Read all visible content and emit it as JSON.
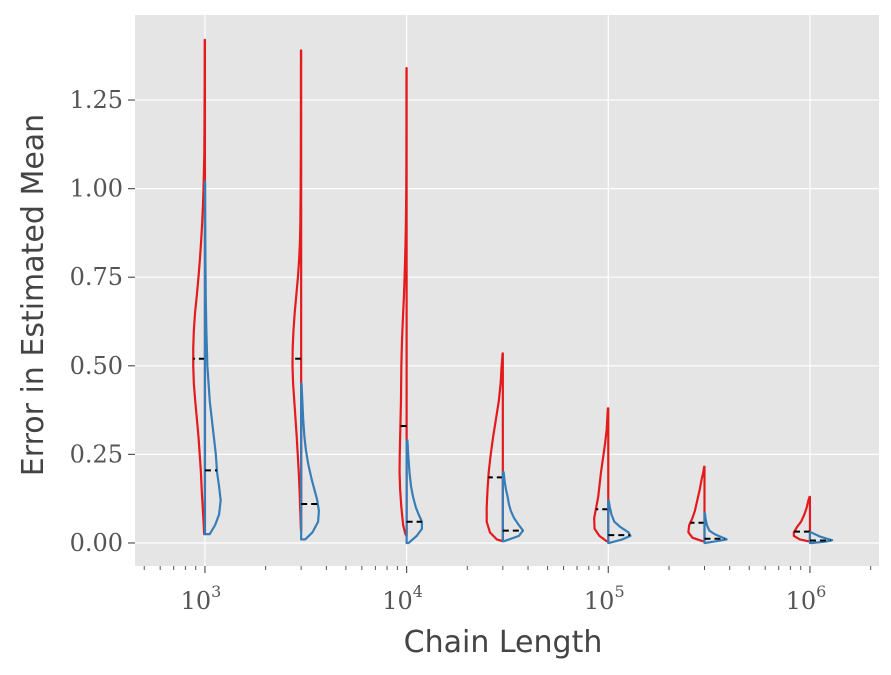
{
  "chart_data": {
    "type": "violin",
    "xlabel": "Chain Length",
    "ylabel": "Error in Estimated Mean",
    "x_scale": "log",
    "xlim": [
      450,
      2200000
    ],
    "ylim": [
      -0.065,
      1.49
    ],
    "grid": true,
    "x_ticks": [
      {
        "base": "10",
        "exp": "3",
        "value": 1000
      },
      {
        "base": "10",
        "exp": "4",
        "value": 10000
      },
      {
        "base": "10",
        "exp": "5",
        "value": 100000
      },
      {
        "base": "10",
        "exp": "6",
        "value": 1000000
      }
    ],
    "y_ticks": [
      {
        "label": "0.00",
        "value": 0.0
      },
      {
        "label": "0.25",
        "value": 0.25
      },
      {
        "label": "0.50",
        "value": 0.5
      },
      {
        "label": "0.75",
        "value": 0.75
      },
      {
        "label": "1.00",
        "value": 1.0
      },
      {
        "label": "1.25",
        "value": 1.25
      }
    ],
    "colors": {
      "left": "#e41a1c",
      "right": "#377eb8",
      "median": "#000000",
      "background": "#e5e5e5",
      "grid": "#ffffff"
    },
    "groups": [
      {
        "x": 1000,
        "left": {
          "median": 0.52,
          "profile": [
            [
              0.025,
              0.02
            ],
            [
              0.05,
              0.03
            ],
            [
              0.1,
              0.055
            ],
            [
              0.15,
              0.08
            ],
            [
              0.2,
              0.1
            ],
            [
              0.25,
              0.13
            ],
            [
              0.3,
              0.16
            ],
            [
              0.35,
              0.2
            ],
            [
              0.4,
              0.24
            ],
            [
              0.45,
              0.275
            ],
            [
              0.5,
              0.29
            ],
            [
              0.55,
              0.29
            ],
            [
              0.6,
              0.275
            ],
            [
              0.65,
              0.245
            ],
            [
              0.7,
              0.2
            ],
            [
              0.75,
              0.16
            ],
            [
              0.8,
              0.125
            ],
            [
              0.85,
              0.095
            ],
            [
              0.9,
              0.07
            ],
            [
              0.95,
              0.05
            ],
            [
              1.0,
              0.035
            ],
            [
              1.05,
              0.025
            ],
            [
              1.1,
              0.015
            ],
            [
              1.2,
              0.01
            ],
            [
              1.3,
              0.007
            ],
            [
              1.42,
              0.005
            ]
          ]
        },
        "right": {
          "median": 0.205,
          "profile": [
            [
              0.025,
              0.12
            ],
            [
              0.05,
              0.25
            ],
            [
              0.08,
              0.35
            ],
            [
              0.12,
              0.39
            ],
            [
              0.16,
              0.35
            ],
            [
              0.2,
              0.3
            ],
            [
              0.25,
              0.27
            ],
            [
              0.3,
              0.22
            ],
            [
              0.35,
              0.17
            ],
            [
              0.4,
              0.12
            ],
            [
              0.5,
              0.06
            ],
            [
              0.6,
              0.035
            ],
            [
              0.7,
              0.02
            ],
            [
              0.8,
              0.012
            ],
            [
              0.9,
              0.008
            ],
            [
              1.02,
              0.004
            ]
          ]
        }
      },
      {
        "x": 3000,
        "left": {
          "median": 0.52,
          "profile": [
            [
              0.035,
              0.005
            ],
            [
              0.05,
              0.01
            ],
            [
              0.1,
              0.025
            ],
            [
              0.15,
              0.04
            ],
            [
              0.2,
              0.06
            ],
            [
              0.25,
              0.085
            ],
            [
              0.3,
              0.11
            ],
            [
              0.35,
              0.14
            ],
            [
              0.4,
              0.17
            ],
            [
              0.45,
              0.2
            ],
            [
              0.5,
              0.215
            ],
            [
              0.55,
              0.21
            ],
            [
              0.6,
              0.19
            ],
            [
              0.65,
              0.16
            ],
            [
              0.7,
              0.12
            ],
            [
              0.75,
              0.08
            ],
            [
              0.8,
              0.05
            ],
            [
              0.85,
              0.03
            ],
            [
              0.9,
              0.02
            ],
            [
              1.0,
              0.012
            ],
            [
              1.1,
              0.008
            ],
            [
              1.2,
              0.006
            ],
            [
              1.3,
              0.006
            ],
            [
              1.39,
              0.005
            ]
          ]
        },
        "right": {
          "median": 0.11,
          "profile": [
            [
              0.01,
              0.1
            ],
            [
              0.03,
              0.28
            ],
            [
              0.06,
              0.42
            ],
            [
              0.09,
              0.44
            ],
            [
              0.12,
              0.4
            ],
            [
              0.15,
              0.33
            ],
            [
              0.18,
              0.26
            ],
            [
              0.22,
              0.18
            ],
            [
              0.26,
              0.12
            ],
            [
              0.3,
              0.08
            ],
            [
              0.35,
              0.05
            ],
            [
              0.4,
              0.03
            ],
            [
              0.45,
              0.01
            ]
          ]
        }
      },
      {
        "x": 10000,
        "left": {
          "median": 0.33,
          "profile": [
            [
              0.02,
              0.005
            ],
            [
              0.025,
              0.03
            ],
            [
              0.05,
              0.085
            ],
            [
              0.1,
              0.13
            ],
            [
              0.15,
              0.16
            ],
            [
              0.2,
              0.175
            ],
            [
              0.25,
              0.17
            ],
            [
              0.3,
              0.16
            ],
            [
              0.35,
              0.15
            ],
            [
              0.4,
              0.14
            ],
            [
              0.45,
              0.135
            ],
            [
              0.5,
              0.13
            ],
            [
              0.55,
              0.12
            ],
            [
              0.6,
              0.105
            ],
            [
              0.65,
              0.085
            ],
            [
              0.7,
              0.065
            ],
            [
              0.75,
              0.05
            ],
            [
              0.8,
              0.037
            ],
            [
              0.85,
              0.026
            ],
            [
              0.9,
              0.018
            ],
            [
              0.95,
              0.012
            ],
            [
              1.0,
              0.008
            ],
            [
              1.1,
              0.005
            ],
            [
              1.2,
              0.004
            ],
            [
              1.34,
              0.003
            ]
          ]
        },
        "right": {
          "median": 0.06,
          "profile": [
            [
              0.0,
              0.05
            ],
            [
              0.02,
              0.25
            ],
            [
              0.04,
              0.38
            ],
            [
              0.06,
              0.38
            ],
            [
              0.08,
              0.3
            ],
            [
              0.1,
              0.23
            ],
            [
              0.13,
              0.16
            ],
            [
              0.16,
              0.11
            ],
            [
              0.2,
              0.07
            ],
            [
              0.25,
              0.04
            ],
            [
              0.29,
              0.02
            ]
          ]
        }
      },
      {
        "x": 30000,
        "left": {
          "median": 0.185,
          "profile": [
            [
              0.005,
              0.005
            ],
            [
              0.01,
              0.15
            ],
            [
              0.03,
              0.32
            ],
            [
              0.06,
              0.4
            ],
            [
              0.1,
              0.4
            ],
            [
              0.15,
              0.38
            ],
            [
              0.2,
              0.35
            ],
            [
              0.25,
              0.3
            ],
            [
              0.3,
              0.24
            ],
            [
              0.35,
              0.17
            ],
            [
              0.4,
              0.1
            ],
            [
              0.45,
              0.055
            ],
            [
              0.5,
              0.03
            ],
            [
              0.535,
              0.005
            ]
          ]
        },
        "right": {
          "median": 0.035,
          "profile": [
            [
              0.005,
              0.03
            ],
            [
              0.02,
              0.4
            ],
            [
              0.035,
              0.5
            ],
            [
              0.05,
              0.4
            ],
            [
              0.07,
              0.28
            ],
            [
              0.09,
              0.2
            ],
            [
              0.11,
              0.15
            ],
            [
              0.13,
              0.12
            ],
            [
              0.15,
              0.08
            ],
            [
              0.17,
              0.05
            ],
            [
              0.2,
              0.02
            ]
          ]
        }
      },
      {
        "x": 100000,
        "left": {
          "median": 0.095,
          "profile": [
            [
              0.005,
              0.04
            ],
            [
              0.02,
              0.22
            ],
            [
              0.04,
              0.34
            ],
            [
              0.07,
              0.35
            ],
            [
              0.1,
              0.3
            ],
            [
              0.13,
              0.25
            ],
            [
              0.16,
              0.22
            ],
            [
              0.2,
              0.18
            ],
            [
              0.24,
              0.13
            ],
            [
              0.28,
              0.08
            ],
            [
              0.32,
              0.04
            ],
            [
              0.36,
              0.02
            ],
            [
              0.38,
              0.01
            ]
          ]
        },
        "right": {
          "median": 0.022,
          "profile": [
            [
              0.0,
              0.02
            ],
            [
              0.01,
              0.35
            ],
            [
              0.02,
              0.55
            ],
            [
              0.03,
              0.5
            ],
            [
              0.045,
              0.3
            ],
            [
              0.06,
              0.15
            ],
            [
              0.08,
              0.08
            ],
            [
              0.1,
              0.04
            ],
            [
              0.12,
              0.01
            ]
          ]
        }
      },
      {
        "x": 300000,
        "left": {
          "median": 0.057,
          "profile": [
            [
              0.005,
              0.05
            ],
            [
              0.015,
              0.3
            ],
            [
              0.03,
              0.4
            ],
            [
              0.05,
              0.38
            ],
            [
              0.07,
              0.3
            ],
            [
              0.09,
              0.24
            ],
            [
              0.12,
              0.18
            ],
            [
              0.15,
              0.12
            ],
            [
              0.18,
              0.07
            ],
            [
              0.2,
              0.03
            ],
            [
              0.215,
              0.01
            ]
          ]
        },
        "right": {
          "median": 0.012,
          "profile": [
            [
              0.0,
              0.02
            ],
            [
              0.005,
              0.3
            ],
            [
              0.01,
              0.55
            ],
            [
              0.015,
              0.45
            ],
            [
              0.025,
              0.25
            ],
            [
              0.035,
              0.12
            ],
            [
              0.05,
              0.06
            ],
            [
              0.07,
              0.025
            ],
            [
              0.085,
              0.01
            ]
          ]
        }
      },
      {
        "x": 1000000,
        "left": {
          "median": 0.032,
          "profile": [
            [
              0.005,
              0.05
            ],
            [
              0.01,
              0.25
            ],
            [
              0.02,
              0.4
            ],
            [
              0.03,
              0.4
            ],
            [
              0.045,
              0.32
            ],
            [
              0.06,
              0.22
            ],
            [
              0.08,
              0.14
            ],
            [
              0.1,
              0.08
            ],
            [
              0.12,
              0.04
            ],
            [
              0.13,
              0.01
            ]
          ]
        },
        "right": {
          "median": 0.007,
          "profile": [
            [
              0.0,
              0.05
            ],
            [
              0.004,
              0.4
            ],
            [
              0.008,
              0.55
            ],
            [
              0.012,
              0.42
            ],
            [
              0.018,
              0.25
            ],
            [
              0.025,
              0.12
            ],
            [
              0.03,
              0.03
            ]
          ]
        }
      }
    ]
  }
}
